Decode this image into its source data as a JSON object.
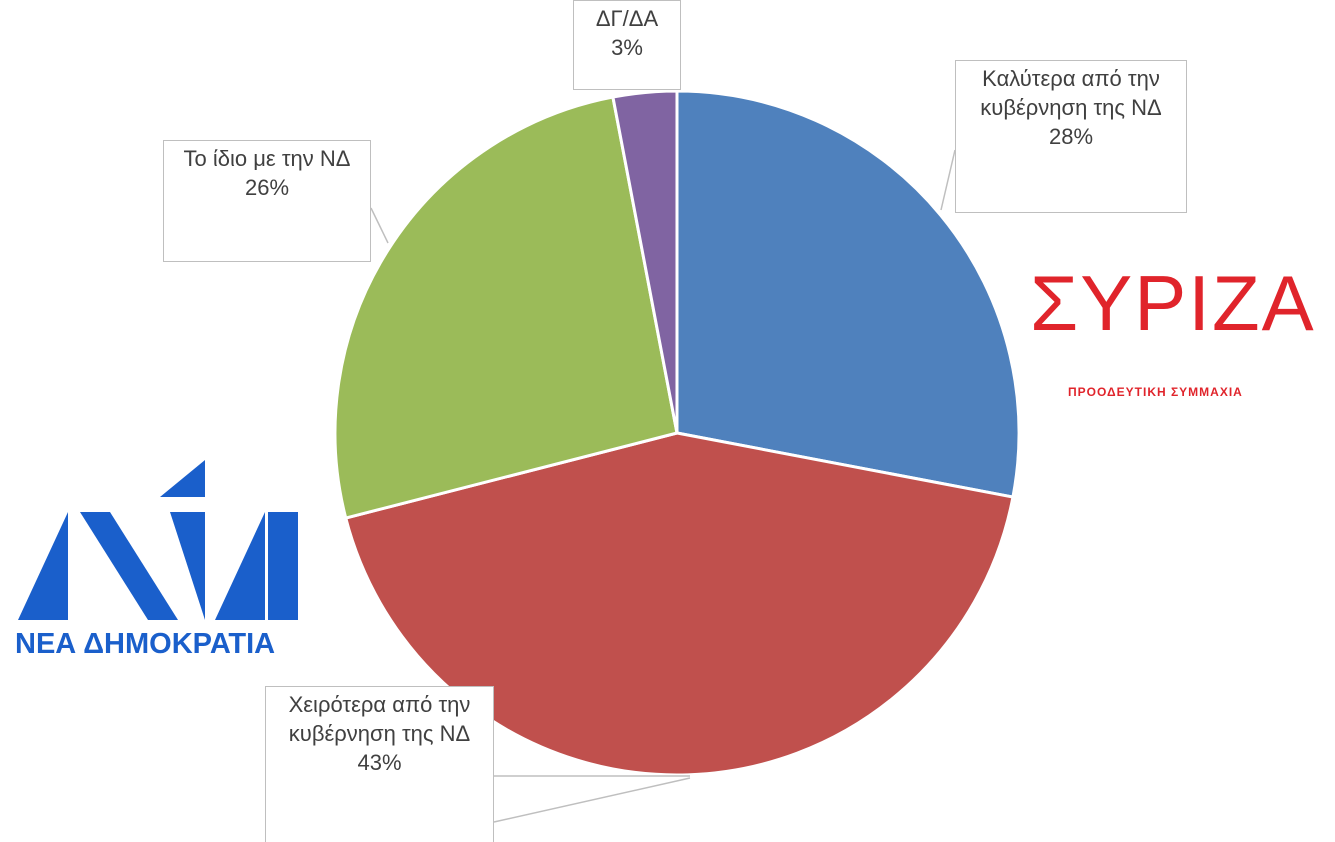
{
  "chart_data": {
    "type": "pie",
    "categories": [
      "Καλύτερα από την κυβέρνηση της ΝΔ",
      "Χειρότερα από την κυβέρνηση της ΝΔ",
      "Το ίδιο με την ΝΔ",
      "ΔΓ/ΔΑ"
    ],
    "values": [
      28,
      43,
      26,
      3
    ],
    "value_labels": [
      "28%",
      "43%",
      "26%",
      "3%"
    ],
    "colors": [
      "#4f81bd",
      "#c0504d",
      "#9bbb59",
      "#8064a2"
    ]
  },
  "logos": {
    "syriza": {
      "wordmark": "ΣΥΡΙΖΑ",
      "tagline": "ΠΡΟΟΔΕΥΤΙΚΗ ΣΥΜΜΑΧΙΑ"
    },
    "nd": {
      "name": "ΝΕΑ ΔΗΜΟΚΡΑΤΙΑ"
    }
  }
}
